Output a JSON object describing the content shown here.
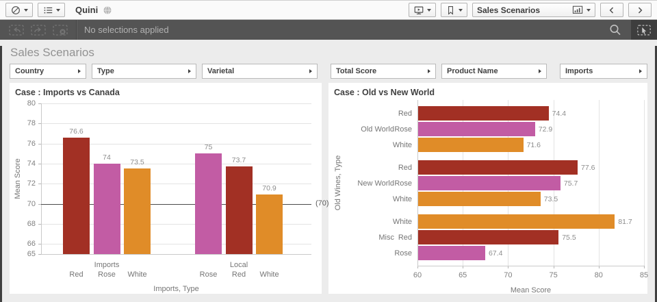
{
  "toolbar": {
    "app_title": "Quini",
    "sheet_selector": {
      "label": "Sales Scenarios"
    }
  },
  "selections_bar": {
    "status_text": "No selections applied"
  },
  "sheet": {
    "title": "Sales Scenarios"
  },
  "filters": [
    {
      "label": "Country"
    },
    {
      "label": "Type"
    },
    {
      "label": "Varietal"
    },
    {
      "label": "Total Score"
    },
    {
      "label": "Product Name"
    },
    {
      "label": "Imports"
    }
  ],
  "colors": {
    "red": "#a23024",
    "rose": "#c25ca4",
    "white": "#e08c28",
    "reference_line": "#4a4a4a",
    "selections_bar_bg": "#545454"
  },
  "icons": {
    "global_menu": "compass-icon",
    "app_overview": "list-icon",
    "app_globe": "globe-icon",
    "storytelling": "monitor-icon",
    "bookmarks": "bookmark-icon",
    "sheet_chart": "bar-chart-icon",
    "prev_sheet": "chevron-left-icon",
    "next_sheet": "chevron-right-icon",
    "undo": "undo-selection-icon",
    "redo": "redo-selection-icon",
    "clear": "clear-selections-icon",
    "search": "search-icon",
    "selections_tool": "selections-tool-icon",
    "filter_open": "right-arrow-icon"
  },
  "chart_data": [
    {
      "type": "bar",
      "orientation": "vertical",
      "title": "Case : Imports vs Canada",
      "xlabel": "Imports, Type",
      "ylabel": "Mean Score",
      "ylim": [
        65,
        80
      ],
      "yticks": [
        80,
        78,
        76,
        74,
        72,
        70,
        68,
        66,
        65
      ],
      "grid": "horizontal",
      "legend": false,
      "reference_line": {
        "value": 70,
        "label": "(70)"
      },
      "groups": [
        {
          "label": "Imports",
          "bars": [
            {
              "category": "Red",
              "value": 76.6,
              "value_label": "76.6"
            },
            {
              "category": "Rose",
              "value": 74,
              "value_label": "74"
            },
            {
              "category": "White",
              "value": 73.5,
              "value_label": "73.5"
            }
          ]
        },
        {
          "label": "Local",
          "bars": [
            {
              "category": "Rose",
              "value": 75,
              "value_label": "75"
            },
            {
              "category": "Red",
              "value": 73.7,
              "value_label": "73.7"
            },
            {
              "category": "White",
              "value": 70.9,
              "value_label": "70.9"
            }
          ]
        }
      ]
    },
    {
      "type": "bar",
      "orientation": "horizontal",
      "title": "Case : Old vs New World",
      "xlabel": "Mean Score",
      "ylabel": "Old Wines, Type",
      "xlim": [
        60,
        85
      ],
      "xticks": [
        60,
        65,
        70,
        75,
        80,
        85
      ],
      "grid": "vertical",
      "legend": false,
      "groups": [
        {
          "label": "Old World",
          "bars": [
            {
              "category": "Red",
              "value": 74.4,
              "value_label": "74.4"
            },
            {
              "category": "Rose",
              "value": 72.9,
              "value_label": "72.9"
            },
            {
              "category": "White",
              "value": 71.6,
              "value_label": "71.6"
            }
          ]
        },
        {
          "label": "New World",
          "bars": [
            {
              "category": "Red",
              "value": 77.6,
              "value_label": "77.6"
            },
            {
              "category": "Rose",
              "value": 75.7,
              "value_label": "75.7"
            },
            {
              "category": "White",
              "value": 73.5,
              "value_label": "73.5"
            }
          ]
        },
        {
          "label": "Misc",
          "bars": [
            {
              "category": "White",
              "value": 81.7,
              "value_label": "81.7"
            },
            {
              "category": "Red",
              "value": 75.5,
              "value_label": "75.5"
            },
            {
              "category": "Rose",
              "value": 67.4,
              "value_label": "67.4"
            }
          ]
        }
      ]
    }
  ]
}
